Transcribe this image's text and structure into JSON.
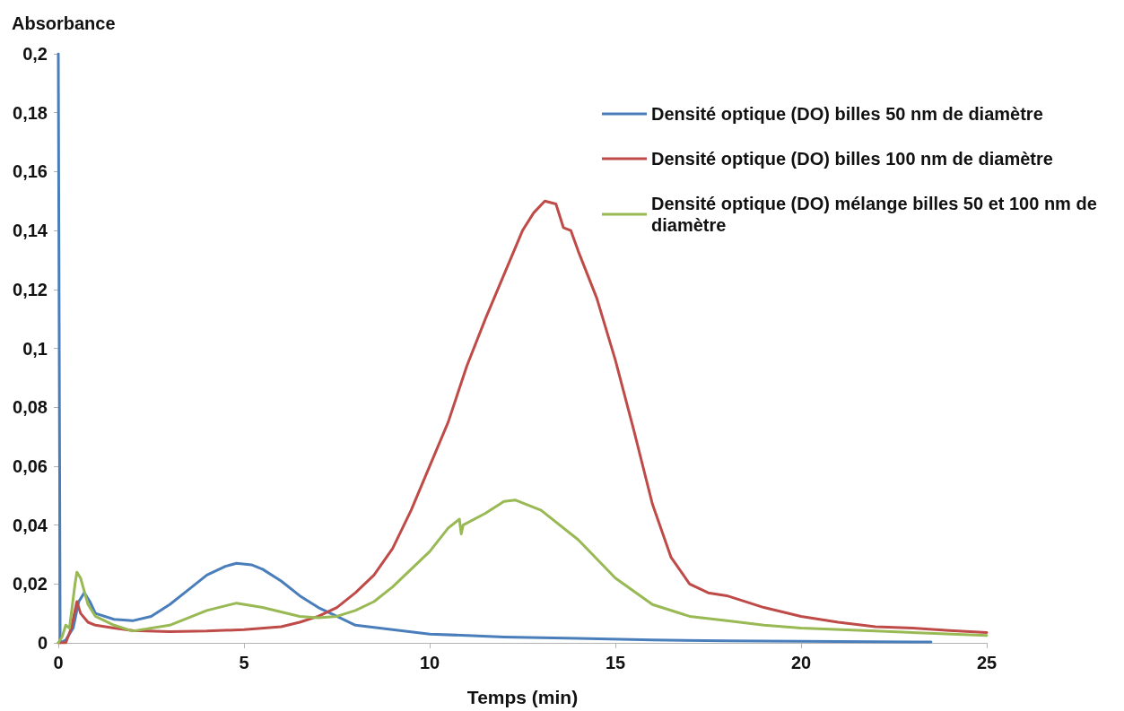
{
  "chart_data": {
    "type": "line",
    "ylabel": "Absorbance",
    "xlabel": "Temps (min)",
    "xlim": [
      0,
      25
    ],
    "xticks": [
      0,
      5,
      10,
      15,
      20,
      25
    ],
    "ylim": [
      0,
      0.2
    ],
    "yticks": [
      0,
      {
        "value": 0.02,
        "label": "0,02"
      },
      {
        "value": 0.04,
        "label": "0,04"
      },
      {
        "value": 0.06,
        "label": "0,06"
      },
      {
        "value": 0.08,
        "label": "0,08"
      },
      {
        "value": 0.1,
        "label": "0,1"
      },
      {
        "value": 0.12,
        "label": "0,12"
      },
      {
        "value": 0.14,
        "label": "0,14"
      },
      {
        "value": 0.16,
        "label": "0,16"
      },
      {
        "value": 0.18,
        "label": "0,18"
      },
      {
        "value": 0.2,
        "label": "0,2"
      }
    ],
    "grid": false,
    "legend": "top right",
    "marker": "none",
    "line_style": "solid",
    "series": [
      {
        "name": "Densité optique (DO) billes 50 nm de diamètre",
        "color": "#4a7ebb",
        "x": [
          0,
          0.05,
          0.2,
          0.4,
          0.55,
          0.7,
          0.85,
          1,
          1.5,
          2,
          2.5,
          3,
          3.5,
          4,
          4.5,
          4.8,
          5.2,
          5.5,
          6,
          6.5,
          7,
          7.5,
          8,
          9,
          10,
          11,
          12,
          14,
          16,
          18,
          20,
          23.5
        ],
        "values": [
          0.2,
          0,
          0.001,
          0.005,
          0.014,
          0.017,
          0.014,
          0.01,
          0.008,
          0.0075,
          0.009,
          0.013,
          0.018,
          0.023,
          0.026,
          0.027,
          0.0265,
          0.025,
          0.021,
          0.016,
          0.012,
          0.009,
          0.006,
          0.0045,
          0.003,
          0.0025,
          0.002,
          0.0015,
          0.001,
          0.0007,
          0.0005,
          0.0003
        ]
      },
      {
        "name": "Densité optique (DO) billes 100 nm de diamètre",
        "color": "#be4b48",
        "x": [
          0,
          0.2,
          0.35,
          0.5,
          0.6,
          0.8,
          1,
          1.5,
          2,
          3,
          4,
          5,
          6,
          6.5,
          7,
          7.5,
          8,
          8.5,
          9,
          9.5,
          10,
          10.5,
          11,
          11.5,
          12,
          12.5,
          12.8,
          13.1,
          13.4,
          13.6,
          13.8,
          14,
          14.5,
          15,
          15.5,
          16,
          16.5,
          17,
          17.5,
          18,
          19,
          20,
          21,
          22,
          23,
          24,
          25
        ],
        "values": [
          0,
          0,
          0.005,
          0.014,
          0.01,
          0.007,
          0.006,
          0.005,
          0.0042,
          0.0038,
          0.004,
          0.0045,
          0.0055,
          0.007,
          0.009,
          0.012,
          0.017,
          0.023,
          0.032,
          0.045,
          0.06,
          0.075,
          0.094,
          0.11,
          0.125,
          0.14,
          0.146,
          0.15,
          0.149,
          0.141,
          0.14,
          0.133,
          0.117,
          0.096,
          0.072,
          0.047,
          0.029,
          0.02,
          0.017,
          0.016,
          0.012,
          0.009,
          0.007,
          0.0055,
          0.005,
          0.0042,
          0.0035
        ]
      },
      {
        "name": "Densité optique (DO) mélange billes 50 et 100 nm de diamètre",
        "color": "#98b954",
        "x": [
          0,
          0.1,
          0.2,
          0.3,
          0.45,
          0.5,
          0.6,
          0.8,
          1,
          1.5,
          2,
          3,
          4,
          4.8,
          5.5,
          6,
          6.5,
          7,
          7.5,
          8,
          8.5,
          9,
          9.5,
          10,
          10.5,
          10.8,
          10.85,
          10.9,
          11.5,
          12,
          12.3,
          13,
          14,
          15,
          16,
          17,
          18,
          19,
          20,
          22,
          25
        ],
        "values": [
          0,
          0.002,
          0.006,
          0.005,
          0.02,
          0.024,
          0.022,
          0.013,
          0.009,
          0.006,
          0.004,
          0.006,
          0.011,
          0.0135,
          0.012,
          0.0105,
          0.009,
          0.0085,
          0.009,
          0.011,
          0.014,
          0.019,
          0.025,
          0.031,
          0.039,
          0.042,
          0.037,
          0.04,
          0.044,
          0.048,
          0.0485,
          0.045,
          0.035,
          0.022,
          0.013,
          0.009,
          0.0075,
          0.006,
          0.005,
          0.004,
          0.0025
        ]
      }
    ]
  }
}
